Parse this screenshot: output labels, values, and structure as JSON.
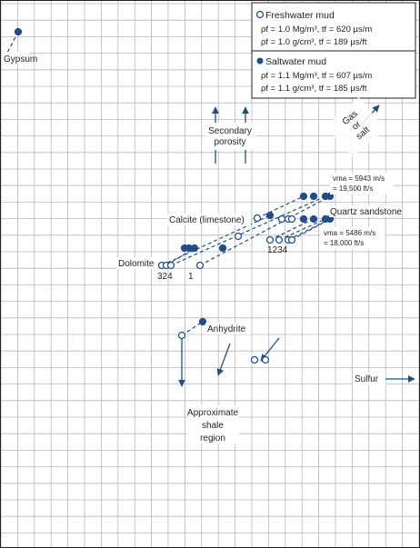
{
  "chart_data": {
    "type": "scatter",
    "legend": {
      "freshwater": {
        "title": "Freshwater mud",
        "line1": "ρf = 1.0 Mg/m³, tf = 620 µs/m",
        "line2": "ρf = 1.0 g/cm³, tf = 189 µs/ft"
      },
      "saltwater": {
        "title": "Saltwater mud",
        "line1": "ρf = 1.1 Mg/m³, tf = 607 µs/m",
        "line2": "ρf = 1.1 g/cm³, tf = 185 µs/ft"
      },
      "placement": "top-right"
    },
    "colors": {
      "saltwater": "#1f4e8c",
      "freshwater": "#ffffff",
      "grid": "#b8b8b8",
      "text": "#231f20",
      "dashed_line": "#1f4e8c"
    },
    "labels": {
      "gypsum": "Gypsum",
      "secondary": "Secondary\nporosity",
      "gas": "Gas\nor\nsalt",
      "calcite": "Calcite (limestone)",
      "quartz": "Quartz sandstone",
      "dolomite": "Dolomite",
      "anhydrite": "Anhydrite",
      "sulfur": "Sulfur",
      "shale": "Approximate\nshale\nregion",
      "vma_high": "vma = 5943 m/s\n= 19,500 ft/s",
      "vma_low": "vma = 5486 m/s\n= 18,000 ft/s",
      "dolomite_numbers": "324",
      "dolomite_one": "1",
      "sandstone_numbers": "1234"
    },
    "series": [
      {
        "name": "Saltwater mud",
        "marker": "filled",
        "points": [
          [
            20,
            35
          ],
          [
            203,
            273
          ],
          [
            208,
            273
          ],
          [
            214,
            273
          ],
          [
            245,
            273
          ],
          [
            297,
            237
          ],
          [
            334,
            216
          ],
          [
            345,
            216
          ],
          [
            358,
            216
          ],
          [
            363,
            216
          ],
          [
            334,
            241
          ],
          [
            345,
            241
          ],
          [
            358,
            241
          ],
          [
            363,
            241
          ],
          [
            223,
            354
          ]
        ]
      },
      {
        "name": "Freshwater mud",
        "marker": "open",
        "points": [
          [
            178,
            292
          ],
          [
            183,
            292
          ],
          [
            188,
            292
          ],
          [
            220,
            292
          ],
          [
            262,
            260
          ],
          [
            283,
            240
          ],
          [
            297,
            264
          ],
          [
            307,
            264
          ],
          [
            317,
            264
          ],
          [
            321,
            264
          ],
          [
            310,
            241
          ],
          [
            317,
            241
          ],
          [
            321,
            241
          ],
          [
            200,
            369
          ],
          [
            280,
            396
          ],
          [
            292,
            396
          ]
        ]
      }
    ],
    "grid": true
  }
}
